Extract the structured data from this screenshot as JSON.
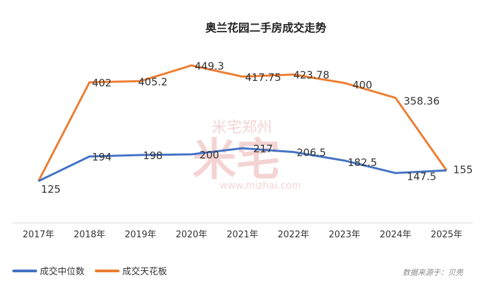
{
  "chart_data": {
    "type": "line",
    "title": "奥兰花园二手房成交走势",
    "categories": [
      "2017年",
      "2018年",
      "2019年",
      "2020年",
      "2021年",
      "2022年",
      "2023年",
      "2024年",
      "2025年"
    ],
    "series": [
      {
        "name": "成交中位数",
        "color": "#4472c4",
        "values": [
          125,
          194,
          198,
          200,
          217,
          206.5,
          182.5,
          147.5,
          155
        ],
        "labels": [
          "125",
          "194",
          "198",
          "200",
          "217",
          "206.5",
          "182.5",
          "147.5",
          "155"
        ]
      },
      {
        "name": "成交天花板",
        "color": "#ed7d31",
        "values": [
          125,
          402,
          405.2,
          449.3,
          417.75,
          423.78,
          400,
          358.36,
          155
        ],
        "labels": [
          "",
          "402",
          "405.2",
          "449.3",
          "417.75",
          "423.78",
          "400",
          "358.36",
          ""
        ]
      }
    ],
    "ylim": [
      0,
      500
    ],
    "legend_position": "bottom-left",
    "source": "数据来源于：贝壳",
    "watermark": {
      "brand": "米宅郑州",
      "url": "www.mizhai.com"
    }
  }
}
